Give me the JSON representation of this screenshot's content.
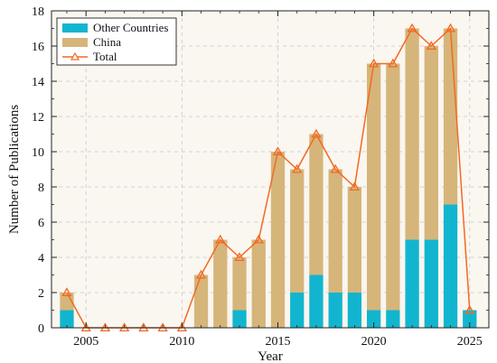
{
  "chart_data": {
    "type": "bar",
    "stacked": true,
    "xlabel": "Year",
    "ylabel": "Number of Publications",
    "x": [
      2004,
      2005,
      2006,
      2007,
      2008,
      2009,
      2010,
      2011,
      2012,
      2013,
      2014,
      2015,
      2016,
      2017,
      2018,
      2019,
      2020,
      2021,
      2022,
      2023,
      2024,
      2025
    ],
    "xlim": [
      2003.2,
      2026.0
    ],
    "ylim": [
      0,
      18
    ],
    "xticks": [
      2005,
      2010,
      2015,
      2020,
      2025
    ],
    "yticks": [
      0,
      2,
      4,
      6,
      8,
      10,
      12,
      14,
      16,
      18
    ],
    "grid": true,
    "legend_position": "top-left",
    "series": [
      {
        "name": "Other Countries",
        "kind": "bar",
        "color": "#12b5cf",
        "values": [
          1,
          0,
          0,
          0,
          0,
          0,
          0,
          0,
          0,
          1,
          0,
          0,
          2,
          3,
          2,
          2,
          1,
          1,
          5,
          5,
          7,
          1
        ]
      },
      {
        "name": "China",
        "kind": "bar",
        "color": "#d6b57a",
        "values": [
          1,
          0,
          0,
          0,
          0,
          0,
          0,
          3,
          5,
          3,
          5,
          10,
          7,
          8,
          7,
          6,
          14,
          14,
          12,
          11,
          10,
          0
        ]
      },
      {
        "name": "Total",
        "kind": "line",
        "marker": "triangle",
        "color": "#f26a21",
        "values": [
          2,
          0,
          0,
          0,
          0,
          0,
          0,
          3,
          5,
          4,
          5,
          10,
          9,
          11,
          9,
          8,
          15,
          15,
          17,
          16,
          17,
          1
        ]
      }
    ]
  },
  "colors": {
    "plot_background": "#faf6f0",
    "grid": "#c8c8c8",
    "axis": "#222222"
  }
}
